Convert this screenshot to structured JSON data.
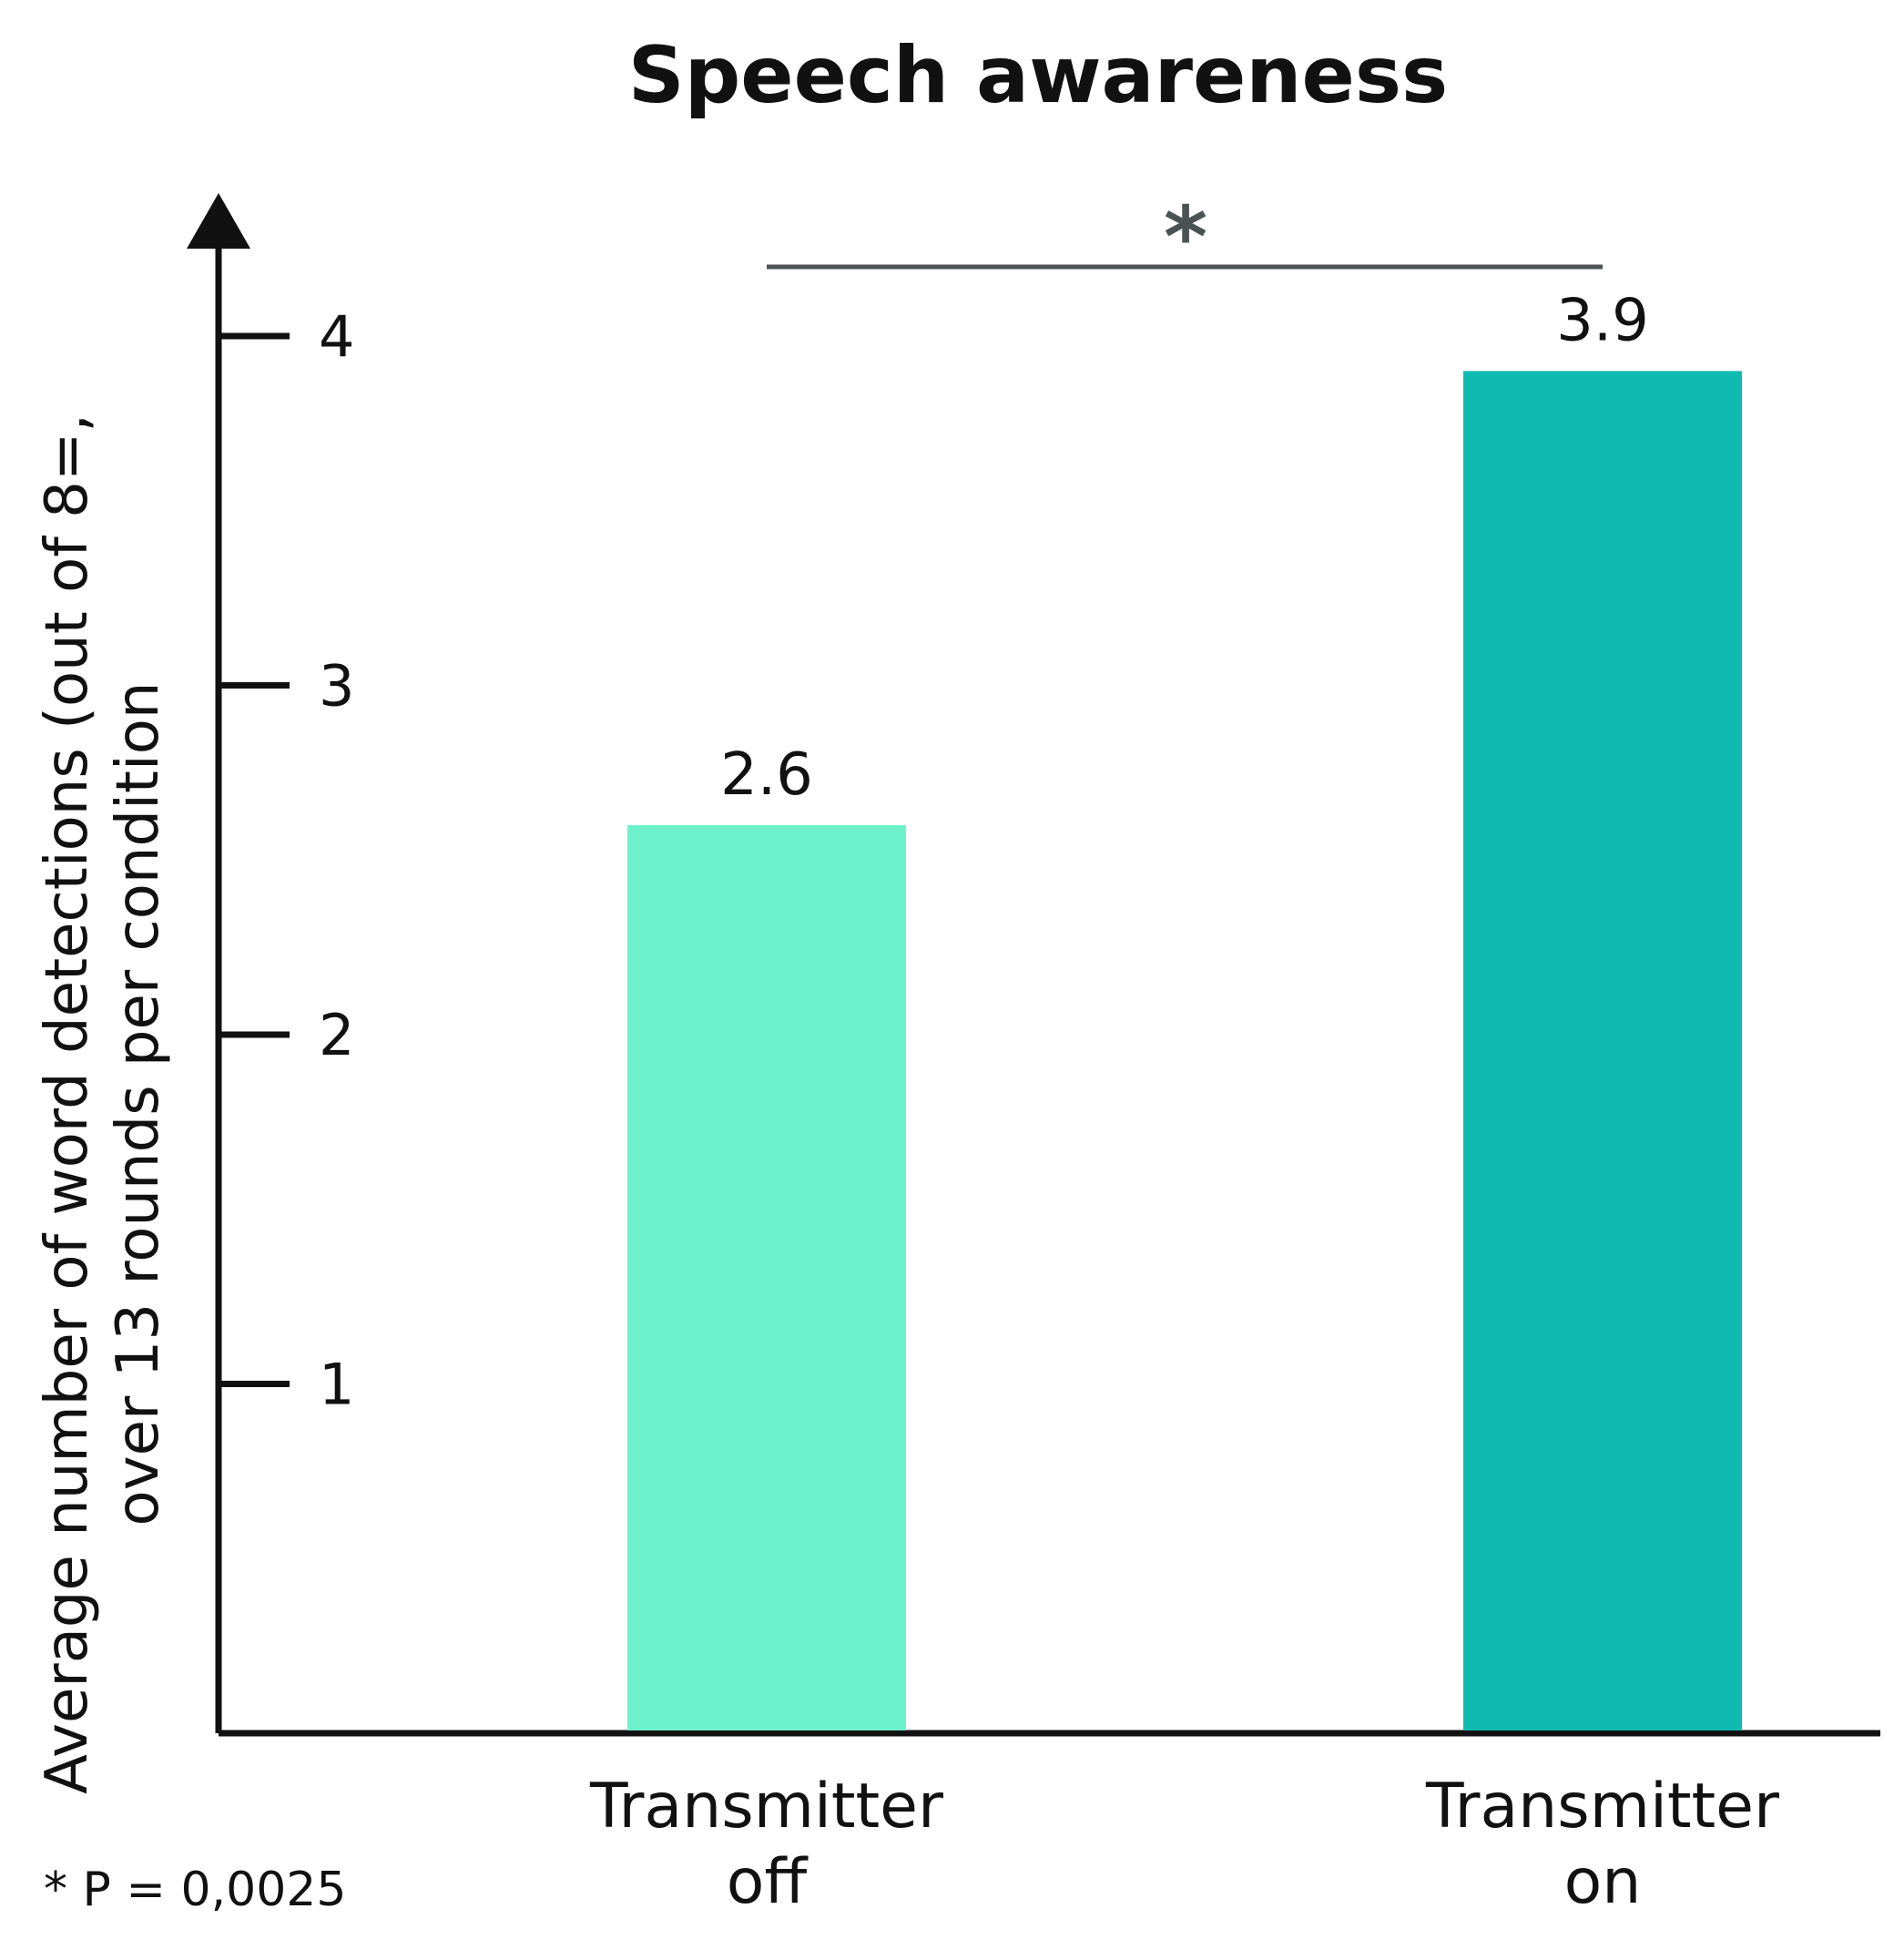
{
  "chart_data": {
    "type": "bar",
    "title": "Speech awareness",
    "ylabel_lines": [
      "Average number of word detections (out of 8=,",
      "over 13 rounds per condition"
    ],
    "xlabel": "",
    "categories": [
      [
        "Transmitter",
        "off"
      ],
      [
        "Transmitter",
        "on"
      ]
    ],
    "values": [
      2.6,
      3.9
    ],
    "value_labels": [
      "2.6",
      "3.9"
    ],
    "bar_colors": [
      "#6ef2cc",
      "#0fbbb1"
    ],
    "yticks": [
      1,
      2,
      3,
      4
    ],
    "ylim": [
      0,
      4.45
    ],
    "grid": false,
    "significance": {
      "marker": "*",
      "between": [
        0,
        1
      ]
    },
    "footnote": "* P = 0,0025"
  }
}
